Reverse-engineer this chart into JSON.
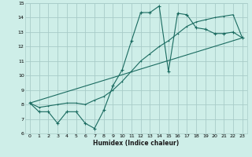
{
  "xlabel": "Humidex (Indice chaleur)",
  "xlim": [
    -0.5,
    23.5
  ],
  "ylim": [
    6,
    15
  ],
  "xticks": [
    0,
    1,
    2,
    3,
    4,
    5,
    6,
    7,
    8,
    9,
    10,
    11,
    12,
    13,
    14,
    15,
    16,
    17,
    18,
    19,
    20,
    21,
    22,
    23
  ],
  "yticks": [
    6,
    7,
    8,
    9,
    10,
    11,
    12,
    13,
    14,
    15
  ],
  "bg_color": "#ceeee8",
  "grid_color": "#a8ccc8",
  "line_color": "#1a6b60",
  "line1_x": [
    0,
    1,
    2,
    3,
    4,
    5,
    6,
    7,
    8,
    9,
    10,
    11,
    12,
    13,
    14,
    15,
    16,
    17,
    18,
    19,
    20,
    21,
    22,
    23
  ],
  "line1_y": [
    8.1,
    7.5,
    7.5,
    6.7,
    7.5,
    7.5,
    6.7,
    6.35,
    7.6,
    9.3,
    10.4,
    12.4,
    14.35,
    14.35,
    14.8,
    10.3,
    14.3,
    14.2,
    13.3,
    13.2,
    12.9,
    12.9,
    13.0,
    12.6
  ],
  "line2_x": [
    0,
    23
  ],
  "line2_y": [
    8.1,
    12.6
  ],
  "line3_x": [
    0,
    1,
    2,
    3,
    4,
    5,
    6,
    7,
    8,
    9,
    10,
    11,
    12,
    13,
    14,
    15,
    16,
    17,
    18,
    19,
    20,
    21,
    22,
    23
  ],
  "line3_y": [
    8.1,
    7.8,
    7.9,
    8.0,
    8.1,
    8.1,
    8.0,
    8.3,
    8.55,
    9.0,
    9.6,
    10.3,
    11.0,
    11.5,
    12.0,
    12.4,
    12.9,
    13.4,
    13.7,
    13.85,
    14.0,
    14.1,
    14.2,
    12.6
  ]
}
